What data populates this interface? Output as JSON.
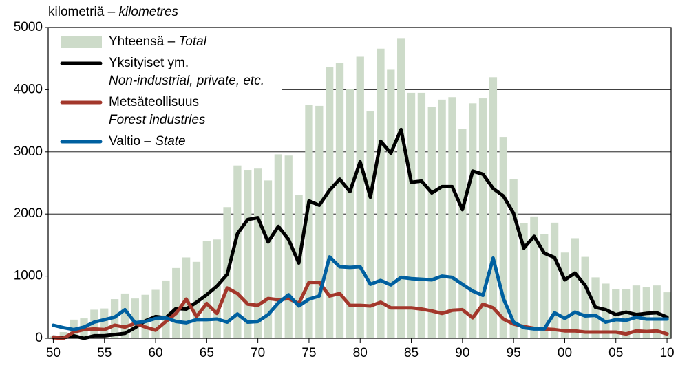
{
  "chart_data": {
    "type": "bar-line",
    "y_label": "kilometriä –",
    "y_label_en": "kilometres",
    "x": [
      1950,
      1951,
      1952,
      1953,
      1954,
      1955,
      1956,
      1957,
      1958,
      1959,
      1960,
      1961,
      1962,
      1963,
      1964,
      1965,
      1966,
      1967,
      1968,
      1969,
      1970,
      1971,
      1972,
      1973,
      1974,
      1975,
      1976,
      1977,
      1978,
      1979,
      1980,
      1981,
      1982,
      1983,
      1984,
      1985,
      1986,
      1987,
      1988,
      1989,
      1990,
      1991,
      1992,
      1993,
      1994,
      1995,
      1996,
      1997,
      1998,
      1999,
      2000,
      2001,
      2002,
      2003,
      2004,
      2005,
      2006,
      2007,
      2008,
      2009,
      2010
    ],
    "xlim": [
      1949.5,
      2010.4
    ],
    "xticks": [
      {
        "value": 1950,
        "label": "50"
      },
      {
        "value": 1955,
        "label": "55"
      },
      {
        "value": 1960,
        "label": "60"
      },
      {
        "value": 1965,
        "label": "65"
      },
      {
        "value": 1970,
        "label": "70"
      },
      {
        "value": 1975,
        "label": "75"
      },
      {
        "value": 1980,
        "label": "80"
      },
      {
        "value": 1985,
        "label": "85"
      },
      {
        "value": 1990,
        "label": "90"
      },
      {
        "value": 1995,
        "label": "95"
      },
      {
        "value": 2000,
        "label": "00"
      },
      {
        "value": 2005,
        "label": "05"
      },
      {
        "value": 2010,
        "label": "10"
      }
    ],
    "ylim": [
      0,
      5000
    ],
    "yticks": [
      0,
      1000,
      2000,
      3000,
      4000,
      5000
    ],
    "grid": true,
    "legend": "upper left",
    "series": [
      {
        "name": "Yhteensä –",
        "name_en": "Total",
        "type": "bar",
        "color": "#cddbc9",
        "values": [
          30,
          100,
          300,
          320,
          460,
          480,
          630,
          720,
          640,
          700,
          780,
          930,
          1130,
          1300,
          1230,
          1560,
          1590,
          2110,
          2780,
          2710,
          2730,
          2540,
          2960,
          2940,
          2310,
          3760,
          3740,
          4360,
          4430,
          4010,
          4530,
          3650,
          4660,
          4320,
          4830,
          3950,
          3950,
          3720,
          3840,
          3880,
          3370,
          3780,
          3860,
          4200,
          3240,
          2560,
          1850,
          1960,
          1680,
          1860,
          1380,
          1610,
          1310,
          980,
          880,
          790,
          790,
          850,
          820,
          850,
          740
        ]
      },
      {
        "name": "Yksityiset ym.",
        "name_en": "Non-industrial, private, etc.",
        "type": "line",
        "color": "#000000",
        "values": [
          20,
          10,
          40,
          0,
          40,
          40,
          60,
          80,
          170,
          280,
          350,
          330,
          480,
          470,
          580,
          700,
          840,
          1030,
          1680,
          1910,
          1940,
          1550,
          1800,
          1590,
          1210,
          2210,
          2140,
          2380,
          2560,
          2360,
          2840,
          2270,
          3170,
          2980,
          3360,
          2510,
          2530,
          2340,
          2440,
          2440,
          2070,
          2690,
          2640,
          2410,
          2290,
          2010,
          1450,
          1640,
          1370,
          1300,
          940,
          1050,
          850,
          500,
          460,
          380,
          420,
          380,
          400,
          410,
          340
        ]
      },
      {
        "name": "Metsäteollisuus",
        "name_en": "Forest industries",
        "type": "line",
        "color": "#a3372b",
        "values": [
          10,
          0,
          100,
          140,
          150,
          140,
          210,
          180,
          240,
          180,
          130,
          270,
          400,
          630,
          350,
          560,
          400,
          810,
          720,
          550,
          530,
          640,
          620,
          640,
          560,
          900,
          900,
          680,
          720,
          530,
          530,
          520,
          580,
          490,
          490,
          490,
          470,
          440,
          400,
          450,
          460,
          330,
          550,
          490,
          310,
          230,
          190,
          160,
          150,
          140,
          120,
          120,
          100,
          100,
          100,
          100,
          70,
          120,
          110,
          120,
          70
        ]
      },
      {
        "name": "Valtio –",
        "name_en": "State",
        "type": "line",
        "color": "#0060a0",
        "values": [
          210,
          170,
          140,
          180,
          260,
          300,
          340,
          460,
          250,
          270,
          320,
          330,
          270,
          250,
          300,
          300,
          310,
          260,
          390,
          260,
          270,
          380,
          570,
          700,
          520,
          630,
          680,
          1310,
          1150,
          1140,
          1150,
          870,
          930,
          860,
          980,
          960,
          950,
          940,
          1000,
          980,
          870,
          760,
          690,
          1290,
          640,
          260,
          170,
          150,
          150,
          410,
          320,
          420,
          360,
          370,
          260,
          300,
          290,
          340,
          310,
          310,
          310
        ]
      }
    ]
  }
}
